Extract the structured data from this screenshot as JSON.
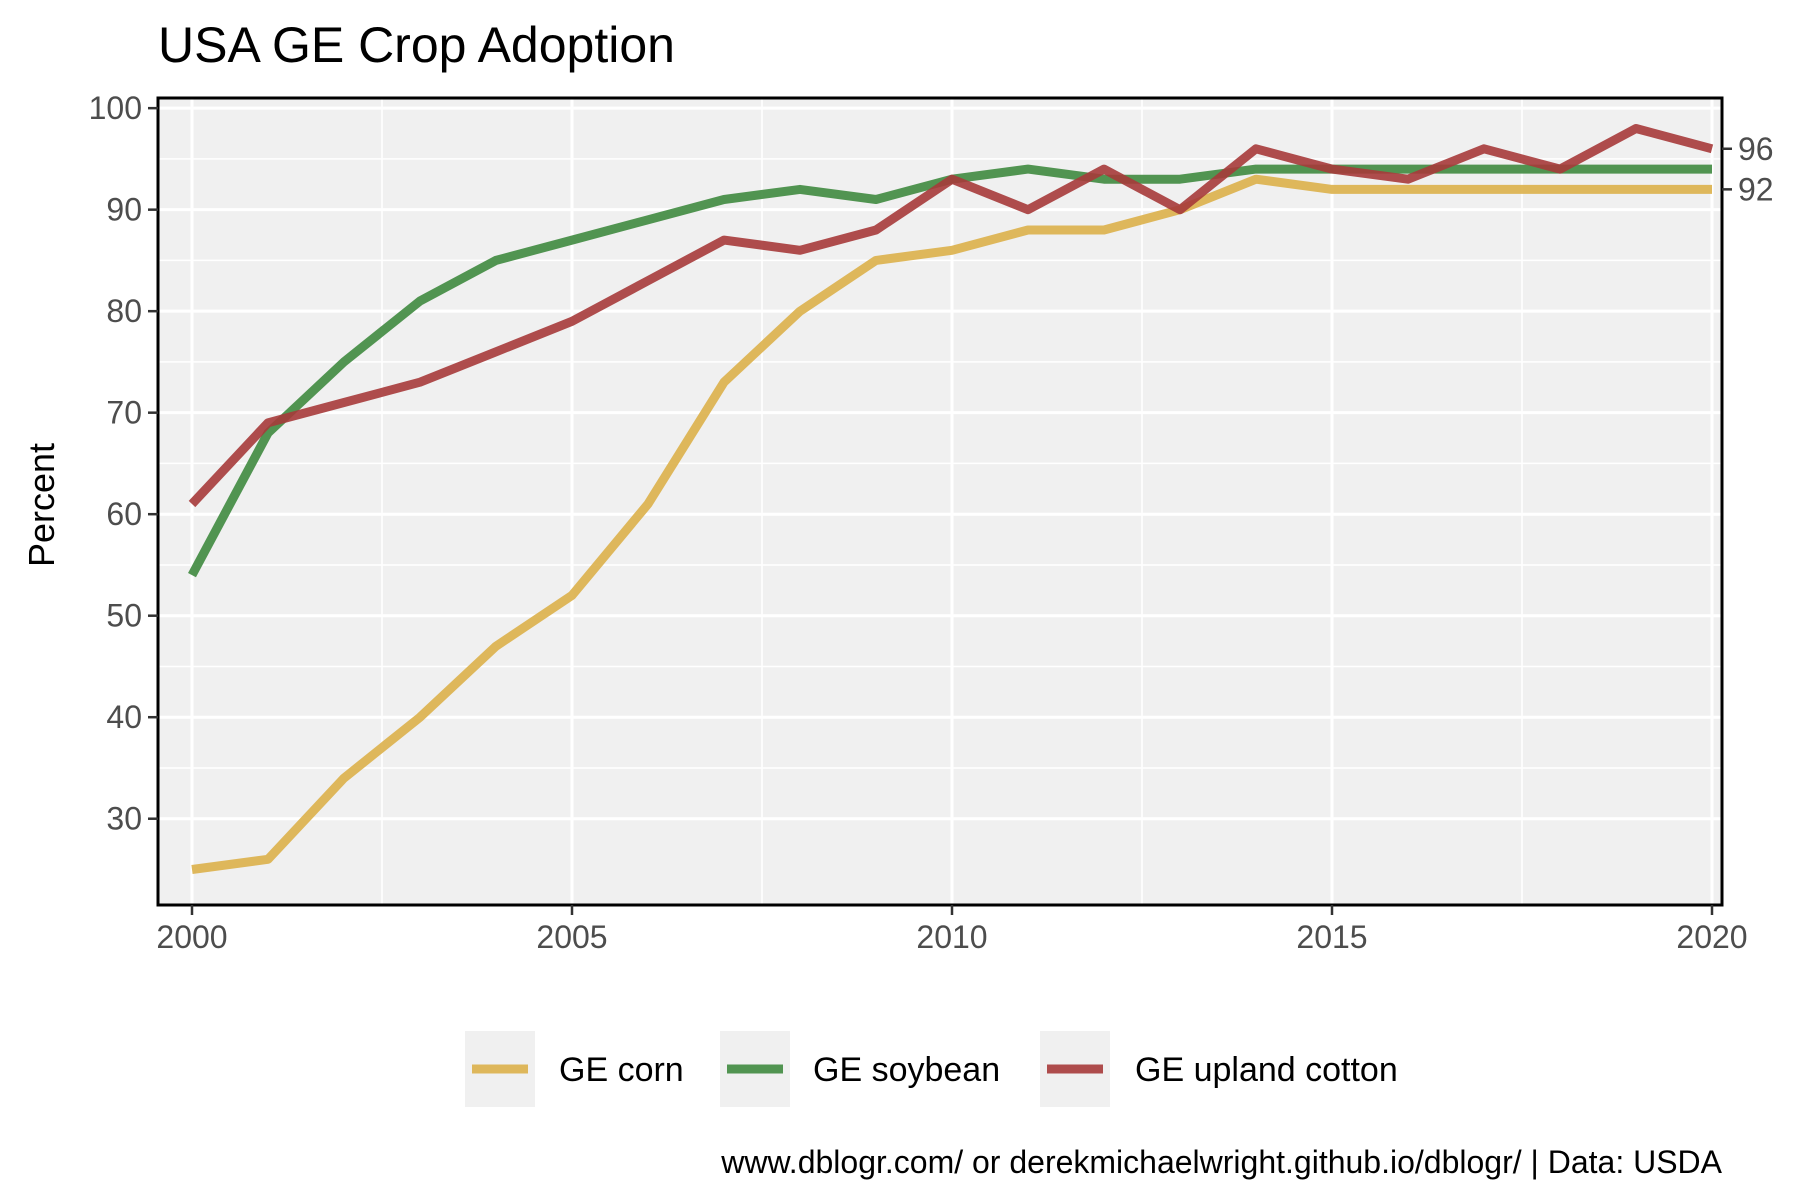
{
  "chart_data": {
    "type": "line",
    "title": "USA GE Crop Adoption",
    "xlabel": "",
    "ylabel": "Percent",
    "xlim": [
      2000,
      2020
    ],
    "ylim": [
      21.5,
      101
    ],
    "x_ticks": [
      2000,
      2005,
      2010,
      2015,
      2020
    ],
    "y_ticks": [
      30,
      40,
      50,
      60,
      70,
      80,
      90,
      100
    ],
    "right_axis_ticks": [
      96,
      92
    ],
    "grid": true,
    "legend_position": "bottom",
    "x": [
      2000,
      2001,
      2002,
      2003,
      2004,
      2005,
      2006,
      2007,
      2008,
      2009,
      2010,
      2011,
      2012,
      2013,
      2014,
      2015,
      2016,
      2017,
      2018,
      2019,
      2020
    ],
    "series": [
      {
        "name": "GE corn",
        "color": "#dcb04a",
        "values": [
          25,
          26,
          34,
          40,
          47,
          52,
          61,
          73,
          80,
          85,
          86,
          88,
          88,
          90,
          93,
          92,
          92,
          92,
          92,
          92,
          92
        ]
      },
      {
        "name": "GE soybean",
        "color": "#3f8a3f",
        "values": [
          54,
          68,
          75,
          81,
          85,
          87,
          89,
          91,
          92,
          91,
          93,
          94,
          93,
          93,
          94,
          94,
          94,
          94,
          94,
          94,
          94
        ]
      },
      {
        "name": "GE upland cotton",
        "color": "#a63a3a",
        "values": [
          61,
          69,
          71,
          73,
          76,
          79,
          83,
          87,
          86,
          88,
          93,
          90,
          94,
          90,
          96,
          94,
          93,
          96,
          94,
          98,
          96
        ]
      }
    ],
    "caption": "www.dblogr.com/ or derekmichaelwright.github.io/dblogr/ | Data: USDA"
  },
  "colors": {
    "panel_background": "#f0f0f0",
    "grid": "#ffffff",
    "axis_text": "#4d4d4d"
  }
}
